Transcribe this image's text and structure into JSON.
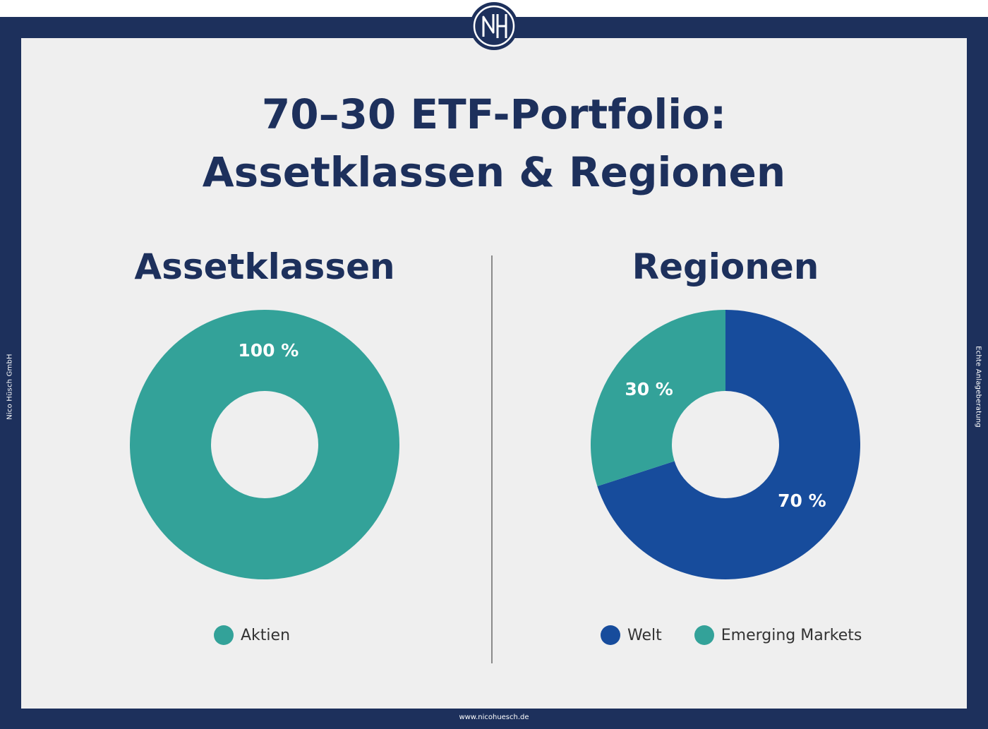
{
  "header": {
    "title_line1": "70–30 ETF-Portfolio:",
    "title_line2": "Assetklassen & Regionen"
  },
  "side_text": {
    "left": "Nico Hüsch GmbH",
    "right": "Echte Anlageberatung"
  },
  "footer": {
    "url": "www.nicohuesch.de"
  },
  "logo": {
    "icon": "nh-monogram-logo",
    "text": "NH"
  },
  "colors": {
    "navy": "#1d305c",
    "teal": "#33a299",
    "blue": "#174c9c",
    "panel": "#efefef"
  },
  "chart_data": [
    {
      "type": "pie",
      "title": "Assetklassen",
      "categories": [
        "Aktien"
      ],
      "values": [
        100
      ],
      "value_labels": [
        "100 %"
      ],
      "colors": [
        "#33a299"
      ],
      "legend_placement": "bottom",
      "legend": [
        "Aktien"
      ]
    },
    {
      "type": "pie",
      "title": "Regionen",
      "categories": [
        "Welt",
        "Emerging Markets"
      ],
      "values": [
        70,
        30
      ],
      "value_labels": [
        "70 %",
        "30 %"
      ],
      "colors": [
        "#174c9c",
        "#33a299"
      ],
      "legend_placement": "bottom",
      "legend": [
        "Welt",
        "Emerging Markets"
      ]
    }
  ]
}
